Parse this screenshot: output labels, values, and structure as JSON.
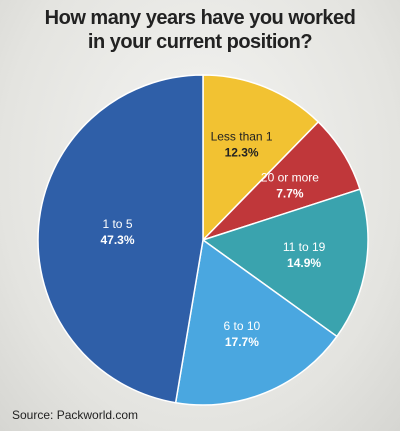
{
  "chart_data": {
    "type": "pie",
    "title": "How many years have you worked in your current position?",
    "categories": [
      "Less than 1",
      "20 or more",
      "11 to 19",
      "6 to 10",
      "1 to 5"
    ],
    "values": [
      12.3,
      7.7,
      14.9,
      17.7,
      47.3
    ],
    "value_labels": [
      "12.3%",
      "7.7%",
      "14.9%",
      "17.7%",
      "47.3%"
    ],
    "colors": [
      "#f2c232",
      "#c0373a",
      "#3aa3ae",
      "#4aa7e0",
      "#2f5fa8"
    ],
    "source": "Source: Packworld.com"
  }
}
